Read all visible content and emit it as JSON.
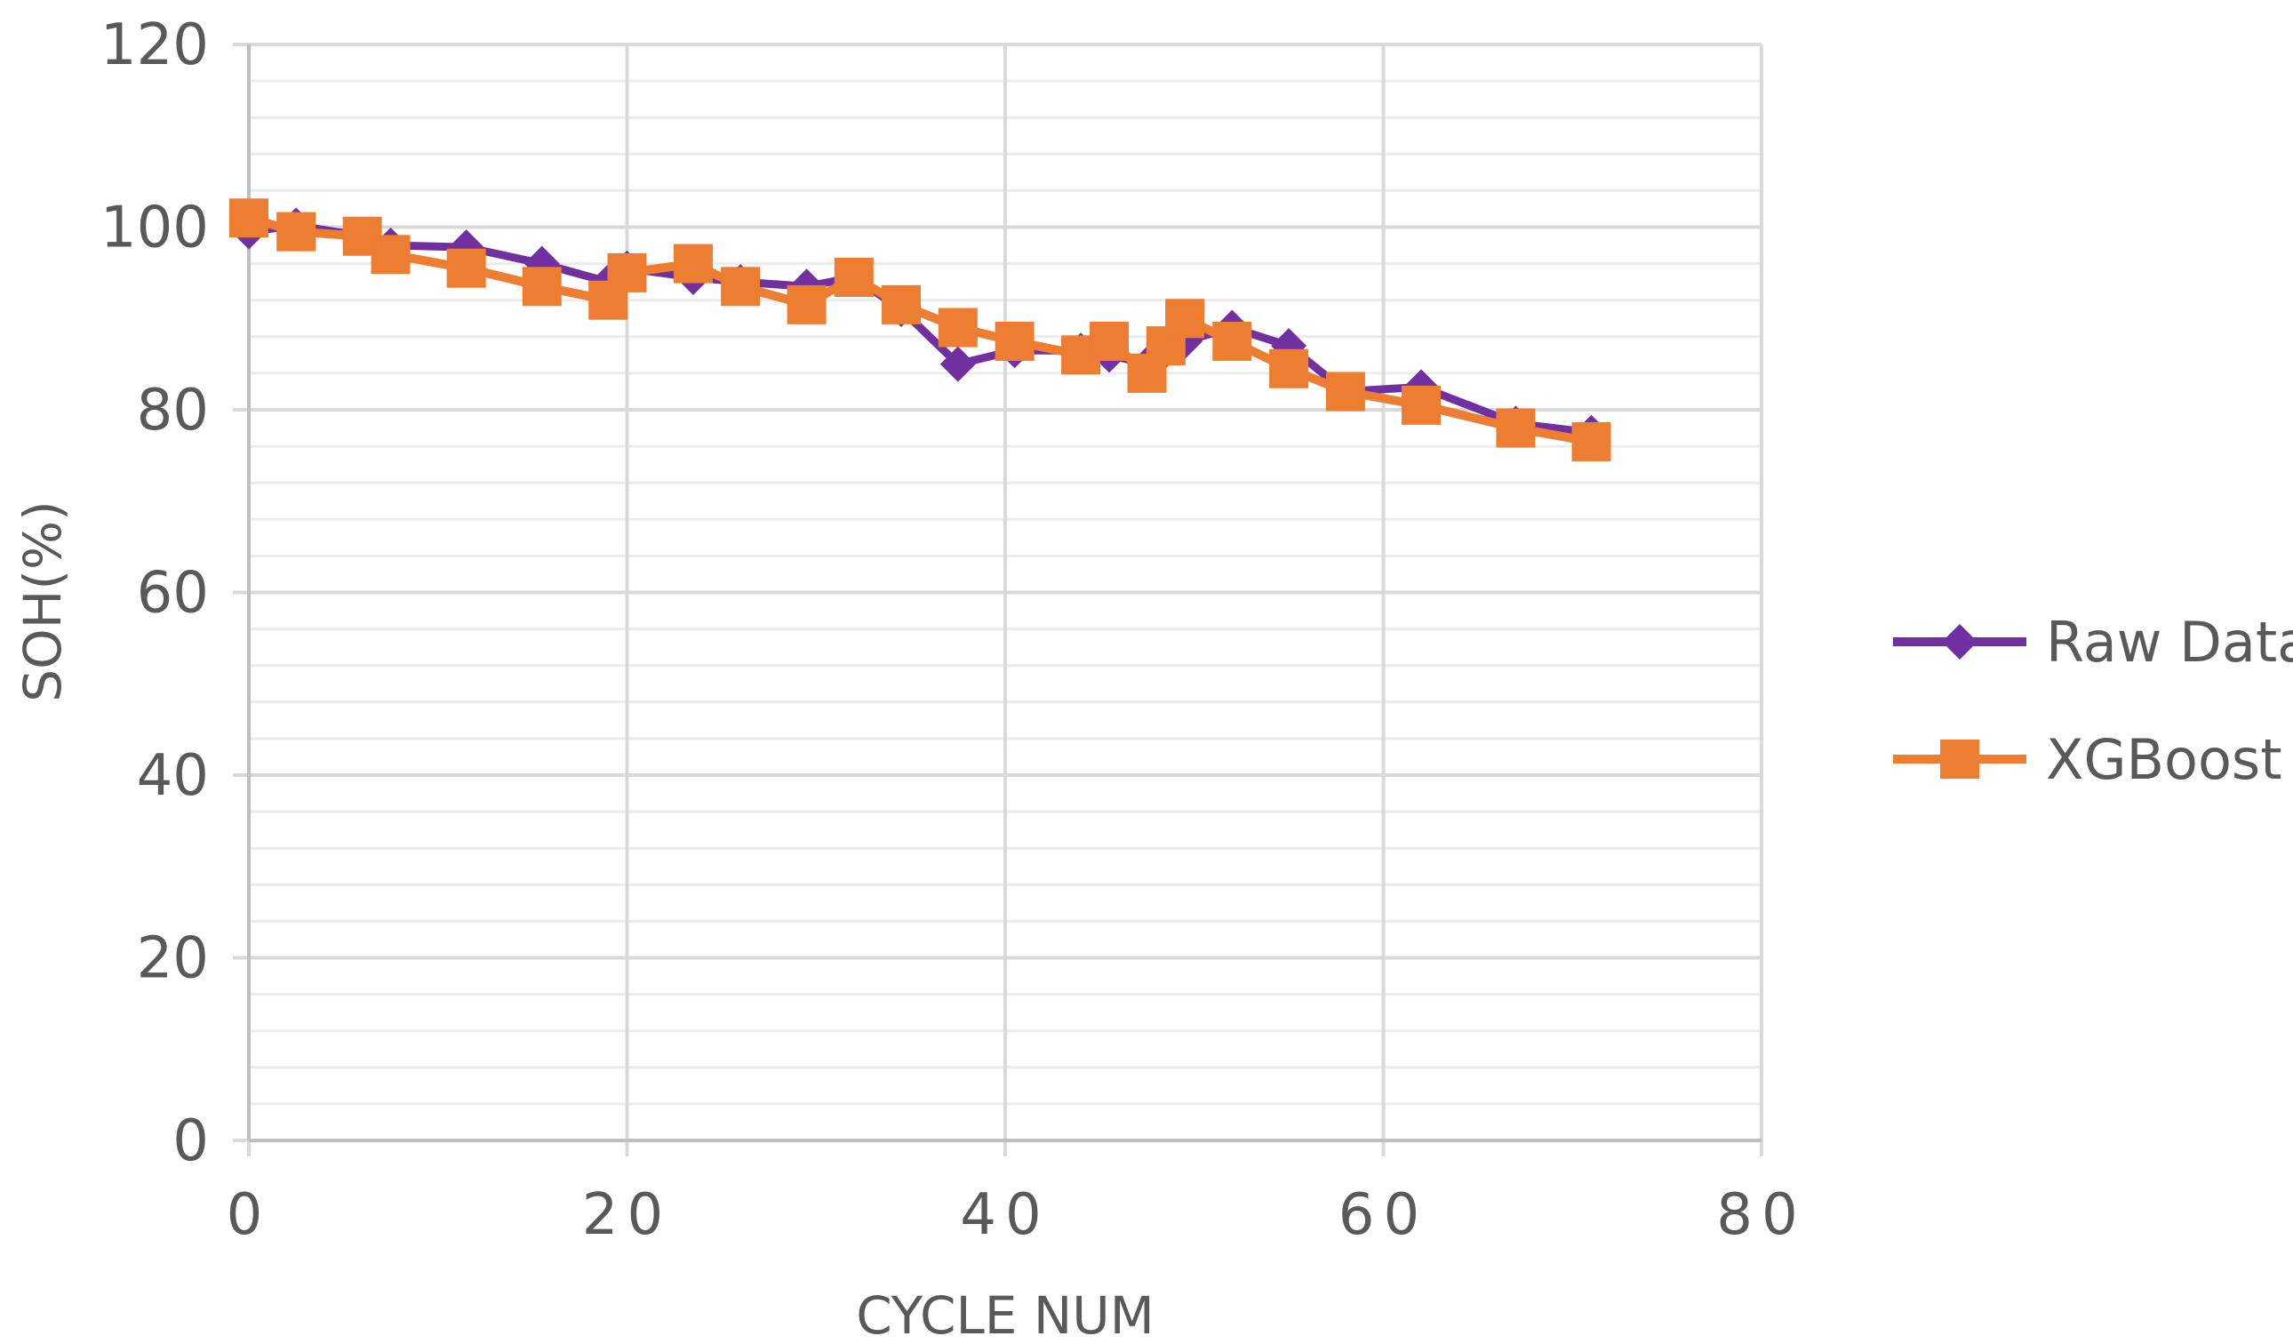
{
  "chart_data": {
    "type": "line",
    "xlabel": "CYCLE NUM",
    "ylabel": "SOH(%)",
    "xlim": [
      0,
      80
    ],
    "ylim": [
      0,
      120
    ],
    "x_ticks": [
      0,
      20,
      40,
      60,
      80
    ],
    "x_tick_labels": [
      "0",
      "20",
      "40",
      "60",
      "80"
    ],
    "y_ticks": [
      0,
      20,
      40,
      60,
      80,
      100,
      120
    ],
    "y_tick_labels": [
      "0",
      "20",
      "40",
      "60",
      "80",
      "100",
      "120"
    ],
    "grid": true,
    "minor_grid": true,
    "legend_position": "right",
    "series": [
      {
        "name": "Raw Data",
        "color": "#7030A0",
        "marker": "diamond",
        "points": [
          [
            0,
            99.5
          ],
          [
            2.5,
            100.2
          ],
          [
            6,
            99
          ],
          [
            7.5,
            98
          ],
          [
            11.5,
            97.8
          ],
          [
            15.5,
            96
          ],
          [
            19,
            94
          ],
          [
            20,
            95.5
          ],
          [
            23.5,
            94.5
          ],
          [
            26,
            94
          ],
          [
            29.5,
            93.5
          ],
          [
            32,
            94.5
          ],
          [
            34.5,
            91
          ],
          [
            37.5,
            85
          ],
          [
            40.5,
            86.5
          ],
          [
            44,
            86.5
          ],
          [
            45.5,
            86
          ],
          [
            47.5,
            85
          ],
          [
            48.5,
            86.5
          ],
          [
            49.5,
            87.5
          ],
          [
            52,
            89
          ],
          [
            55,
            87
          ],
          [
            58,
            82
          ],
          [
            62,
            82.5
          ],
          [
            67,
            78.5
          ],
          [
            71,
            77.5
          ]
        ]
      },
      {
        "name": "XGBoost",
        "color": "#ED7D31",
        "marker": "square",
        "points": [
          [
            0,
            101
          ],
          [
            2.5,
            99.5
          ],
          [
            6,
            99
          ],
          [
            7.5,
            97
          ],
          [
            11.5,
            95.5
          ],
          [
            15.5,
            93.5
          ],
          [
            19,
            92
          ],
          [
            20,
            95
          ],
          [
            23.5,
            96
          ],
          [
            26,
            93.5
          ],
          [
            29.5,
            91.5
          ],
          [
            32,
            94.5
          ],
          [
            34.5,
            91.5
          ],
          [
            37.5,
            89
          ],
          [
            40.5,
            87.5
          ],
          [
            44,
            86
          ],
          [
            45.5,
            87.5
          ],
          [
            47.5,
            84
          ],
          [
            48.5,
            87
          ],
          [
            49.5,
            90
          ],
          [
            52,
            87.5
          ],
          [
            55,
            84.5
          ],
          [
            58,
            82
          ],
          [
            62,
            80.5
          ],
          [
            67,
            78
          ],
          [
            71,
            76.5
          ]
        ]
      }
    ]
  }
}
